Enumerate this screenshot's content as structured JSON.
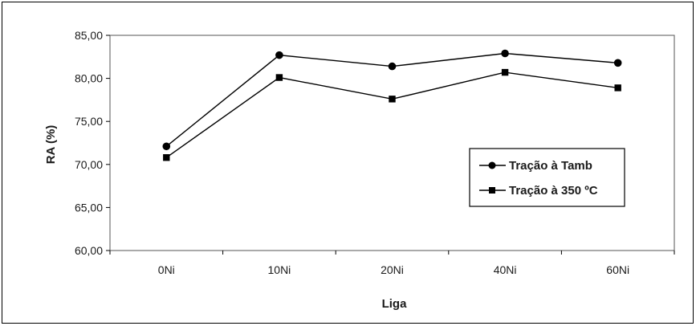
{
  "chart_data": {
    "type": "line",
    "title": "",
    "xlabel": "Liga",
    "ylabel": "RA (%)",
    "categories": [
      "0Ni",
      "10Ni",
      "20Ni",
      "40Ni",
      "60Ni"
    ],
    "ylim": [
      60,
      85
    ],
    "yticks": [
      "60,00",
      "65,00",
      "70,00",
      "75,00",
      "80,00",
      "85,00"
    ],
    "grid": false,
    "legend_position": "right",
    "series": [
      {
        "name": "Tração à Tamb",
        "marker": "circle",
        "color": "#000000",
        "values": [
          72.1,
          82.7,
          81.4,
          82.9,
          81.8
        ]
      },
      {
        "name": "Tração à 350 ºC",
        "marker": "square",
        "color": "#000000",
        "values": [
          70.8,
          80.1,
          77.6,
          80.7,
          78.9
        ]
      }
    ]
  }
}
